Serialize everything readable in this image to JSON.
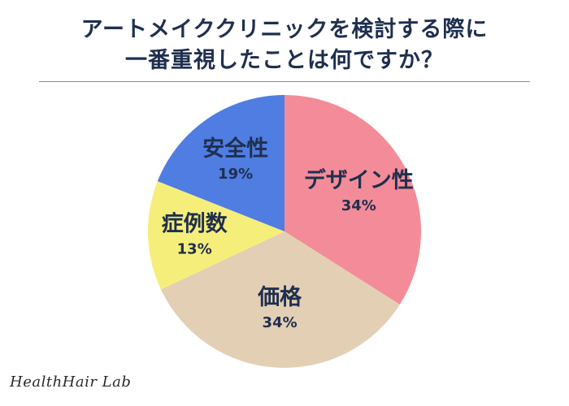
{
  "header": {
    "title_lines": [
      "アートメイククリニックを検討する際に",
      "一番重視したことは何ですか？"
    ]
  },
  "brand": {
    "name": "HealthHair Lab"
  },
  "chart_data": {
    "type": "pie",
    "title": "アートメイククリニックを検討する際に一番重視したことは何ですか？",
    "start_angle_deg": 0,
    "direction": "clockwise",
    "slices": [
      {
        "label": "デザイン性",
        "value": 34,
        "value_label": "34%",
        "color": "#f38c98"
      },
      {
        "label": "価格",
        "value": 34,
        "value_label": "34%",
        "color": "#e3cfb4"
      },
      {
        "label": "症例数",
        "value": 13,
        "value_label": "13%",
        "color": "#f6ee7a"
      },
      {
        "label": "安全性",
        "value": 19,
        "value_label": "19%",
        "color": "#4f7de2"
      }
    ],
    "legend": "none"
  }
}
